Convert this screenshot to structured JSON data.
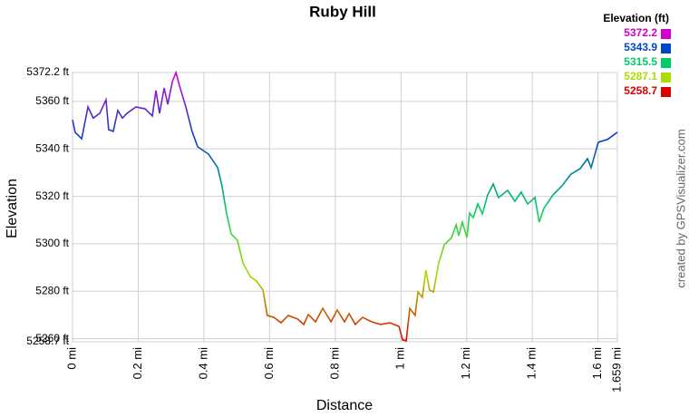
{
  "chart_data": {
    "type": "line",
    "title": "Ruby Hill",
    "x_label": "Distance",
    "y_label": "Elevation",
    "credit": "created by GPSVisualizer.com",
    "x": [
      0,
      0.008,
      0.028,
      0.047,
      0.063,
      0.083,
      0.102,
      0.11,
      0.124,
      0.138,
      0.152,
      0.166,
      0.193,
      0.221,
      0.243,
      0.254,
      0.265,
      0.279,
      0.29,
      0.304,
      0.315,
      0.326,
      0.345,
      0.364,
      0.381,
      0.414,
      0.442,
      0.455,
      0.469,
      0.483,
      0.502,
      0.519,
      0.541,
      0.56,
      0.58,
      0.593,
      0.613,
      0.635,
      0.657,
      0.685,
      0.704,
      0.718,
      0.74,
      0.762,
      0.787,
      0.806,
      0.828,
      0.842,
      0.861,
      0.883,
      0.911,
      0.938,
      0.966,
      0.994,
      1.005,
      1.016,
      1.027,
      1.043,
      1.052,
      1.065,
      1.076,
      1.087,
      1.099,
      1.115,
      1.132,
      1.154,
      1.168,
      1.176,
      1.187,
      1.201,
      1.209,
      1.22,
      1.234,
      1.248,
      1.264,
      1.281,
      1.297,
      1.325,
      1.347,
      1.366,
      1.386,
      1.408,
      1.421,
      1.435,
      1.463,
      1.49,
      1.518,
      1.546,
      1.568,
      1.579,
      1.601,
      1.629,
      1.659
    ],
    "values": [
      5352.3,
      5347,
      5344.3,
      5357.7,
      5353,
      5355,
      5360.7,
      5348.1,
      5347.4,
      5356.2,
      5353,
      5355,
      5357.7,
      5356.9,
      5353.9,
      5364.6,
      5355,
      5365.7,
      5358.8,
      5368.4,
      5372.2,
      5366.5,
      5357.7,
      5347.4,
      5340.9,
      5337.8,
      5332.1,
      5324.4,
      5312.9,
      5304.2,
      5301.5,
      5291.9,
      5286.2,
      5284.3,
      5280.5,
      5269.8,
      5269,
      5266.7,
      5269.8,
      5268.3,
      5266,
      5270.2,
      5267.1,
      5272.8,
      5267.1,
      5272.1,
      5267.1,
      5270.6,
      5266,
      5269,
      5267.1,
      5266,
      5266.7,
      5265.2,
      5259.5,
      5259.1,
      5272.8,
      5269.8,
      5279.7,
      5277.4,
      5288.9,
      5280.5,
      5279.7,
      5291.9,
      5299.6,
      5302.6,
      5308,
      5303.4,
      5309.1,
      5302.6,
      5312.9,
      5311,
      5316.8,
      5312.6,
      5320.6,
      5325.2,
      5319.5,
      5322.5,
      5317.9,
      5321.8,
      5316.8,
      5319.5,
      5309.1,
      5314.9,
      5320.6,
      5324.4,
      5329.4,
      5331.7,
      5335.9,
      5332.1,
      5342.8,
      5344,
      5347
    ],
    "xlim": [
      0,
      1.659
    ],
    "xticks": [
      {
        "value": 0,
        "label": "0 mi"
      },
      {
        "value": 0.2,
        "label": "0.2 mi"
      },
      {
        "value": 0.4,
        "label": "0.4 mi"
      },
      {
        "value": 0.6,
        "label": "0.6 mi"
      },
      {
        "value": 0.8,
        "label": "0.8 mi"
      },
      {
        "value": 1,
        "label": "1 mi"
      },
      {
        "value": 1.2,
        "label": "1.2 mi"
      },
      {
        "value": 1.4,
        "label": "1.4 mi"
      },
      {
        "value": 1.6,
        "label": "1.6 mi"
      },
      {
        "value": 1.659,
        "label": "1.659 mi"
      }
    ],
    "ylim": [
      5258.7,
      5372.2
    ],
    "yticks": [
      {
        "value": 5258.7,
        "label": "5258.7 ft"
      },
      {
        "value": 5260,
        "label": "5260 ft"
      },
      {
        "value": 5280,
        "label": "5280 ft"
      },
      {
        "value": 5300,
        "label": "5300 ft"
      },
      {
        "value": 5320,
        "label": "5320 ft"
      },
      {
        "value": 5340,
        "label": "5340 ft"
      },
      {
        "value": 5360,
        "label": "5360 ft"
      },
      {
        "value": 5372.2,
        "label": "5372.2 ft"
      }
    ],
    "grid": true,
    "color_scale": {
      "title": "Elevation (ft)",
      "stops": [
        {
          "value": 5372.2,
          "color": "#d000d0"
        },
        {
          "value": 5343.9,
          "color": "#0044cc"
        },
        {
          "value": 5315.5,
          "color": "#00cc66"
        },
        {
          "value": 5287.1,
          "color": "#aadd00"
        },
        {
          "value": 5258.7,
          "color": "#dd0000"
        }
      ]
    }
  }
}
